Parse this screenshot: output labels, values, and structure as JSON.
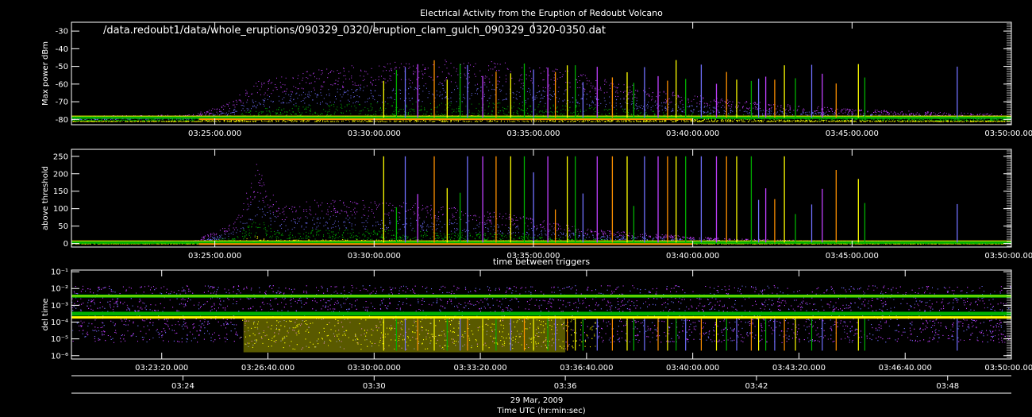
{
  "title": "Electrical Activity from the Eruption of Redoubt Volcano",
  "file_path": "/data.redoubt1/data/whole_eruptions/090329_0320/eruption_clam_gulch_090329_0320-0350.dat",
  "colors": {
    "background": "#000000",
    "axis": "#ffffff",
    "magenta": "#c040ff",
    "blue": "#7070ff",
    "green": "#00b000",
    "yellow": "#ffff00",
    "orange": "#ff9000",
    "red": "#ff2000"
  },
  "chart_data": [
    {
      "type": "scatter",
      "title": "",
      "ylabel": "Max power dBm",
      "yticks": [
        "-30",
        "-40",
        "-50",
        "-60",
        "-70",
        "-80"
      ],
      "ytick_values": [
        -30,
        -40,
        -50,
        -60,
        -70,
        -80
      ],
      "ylim": [
        -83,
        -25
      ],
      "xticks": [
        "03:25:00.000",
        "03:30:00.000",
        "03:35:00.000",
        "03:40:00.000",
        "03:45:00.000",
        "03:50:00.000"
      ],
      "xtick_minutes": [
        25,
        30,
        35,
        40,
        45,
        50
      ],
      "xlim_minutes": [
        20.5,
        50
      ],
      "baseline": -79,
      "envelope": [
        {
          "t": 20.5,
          "low": -81,
          "high": -78
        },
        {
          "t": 24.3,
          "low": -81,
          "high": -77
        },
        {
          "t": 25.5,
          "low": -81,
          "high": -70
        },
        {
          "t": 26.3,
          "low": -81,
          "high": -58
        },
        {
          "t": 28.0,
          "low": -81,
          "high": -52
        },
        {
          "t": 30.0,
          "low": -81,
          "high": -48
        },
        {
          "t": 32.0,
          "low": -81,
          "high": -46
        },
        {
          "t": 34.0,
          "low": -81,
          "high": -47
        },
        {
          "t": 36.0,
          "low": -81,
          "high": -52
        },
        {
          "t": 38.0,
          "low": -81,
          "high": -60
        },
        {
          "t": 40.0,
          "low": -81,
          "high": -66
        },
        {
          "t": 42.0,
          "low": -81,
          "high": -70
        },
        {
          "t": 45.0,
          "low": -81,
          "high": -74
        },
        {
          "t": 50.0,
          "low": -81,
          "high": -77
        }
      ]
    },
    {
      "type": "scatter",
      "title": "",
      "ylabel": "above threshold",
      "yticks": [
        "0",
        "50",
        "100",
        "150",
        "200",
        "250"
      ],
      "ytick_values": [
        0,
        50,
        100,
        150,
        200,
        250
      ],
      "ylim": [
        -10,
        270
      ],
      "xticks": [
        "03:25:00.000",
        "03:30:00.000",
        "03:35:00.000",
        "03:40:00.000",
        "03:45:00.000",
        "03:50:00.000"
      ],
      "xtick_minutes": [
        25,
        30,
        35,
        40,
        45,
        50
      ],
      "xlim_minutes": [
        20.5,
        50
      ],
      "baseline": 3,
      "envelope": [
        {
          "t": 20.5,
          "low": 0,
          "high": 5
        },
        {
          "t": 24.3,
          "low": 0,
          "high": 8
        },
        {
          "t": 25.6,
          "low": 0,
          "high": 60
        },
        {
          "t": 26.3,
          "low": 0,
          "high": 230
        },
        {
          "t": 27.0,
          "low": 0,
          "high": 110
        },
        {
          "t": 28.5,
          "low": 0,
          "high": 130
        },
        {
          "t": 31.0,
          "low": 0,
          "high": 120
        },
        {
          "t": 34.0,
          "low": 0,
          "high": 90
        },
        {
          "t": 37.0,
          "low": 0,
          "high": 40
        },
        {
          "t": 41.0,
          "low": 0,
          "high": 15
        },
        {
          "t": 45.0,
          "low": 0,
          "high": 8
        },
        {
          "t": 50.0,
          "low": 0,
          "high": 5
        }
      ]
    },
    {
      "type": "scatter",
      "title": "time between triggers",
      "ylabel": "del time",
      "yscale": "log",
      "yticks": [
        "10⁻¹",
        "10⁻²",
        "10⁻³",
        "10⁻⁴",
        "10⁻⁵",
        "10⁻⁶"
      ],
      "ytick_exponents": [
        -1,
        -2,
        -3,
        -4,
        -5,
        -6
      ],
      "ylim_exponent": [
        -6.2,
        -0.9
      ],
      "xticks": [
        "03:23:20.000",
        "03:26:40.000",
        "03:30:00.000",
        "03:33:20.000",
        "03:36:40.000",
        "03:40:00.000",
        "03:43:20.000",
        "03:46:40.000",
        "03:50:00.000"
      ],
      "xtick_minutes": [
        23.333,
        26.667,
        30,
        33.333,
        36.667,
        40,
        43.333,
        46.667,
        50
      ],
      "xlim_minutes": [
        20.5,
        50
      ],
      "bands_exponent": [
        -2.45,
        -3.5,
        -3.72
      ]
    }
  ],
  "time_axis": {
    "ticks": [
      "03:24",
      "03:30",
      "03:36",
      "03:42",
      "03:48"
    ],
    "tick_minutes": [
      24,
      30,
      36,
      42,
      48
    ],
    "date": "29 Mar, 2009",
    "label": "Time UTC (hr:min:sec)"
  }
}
